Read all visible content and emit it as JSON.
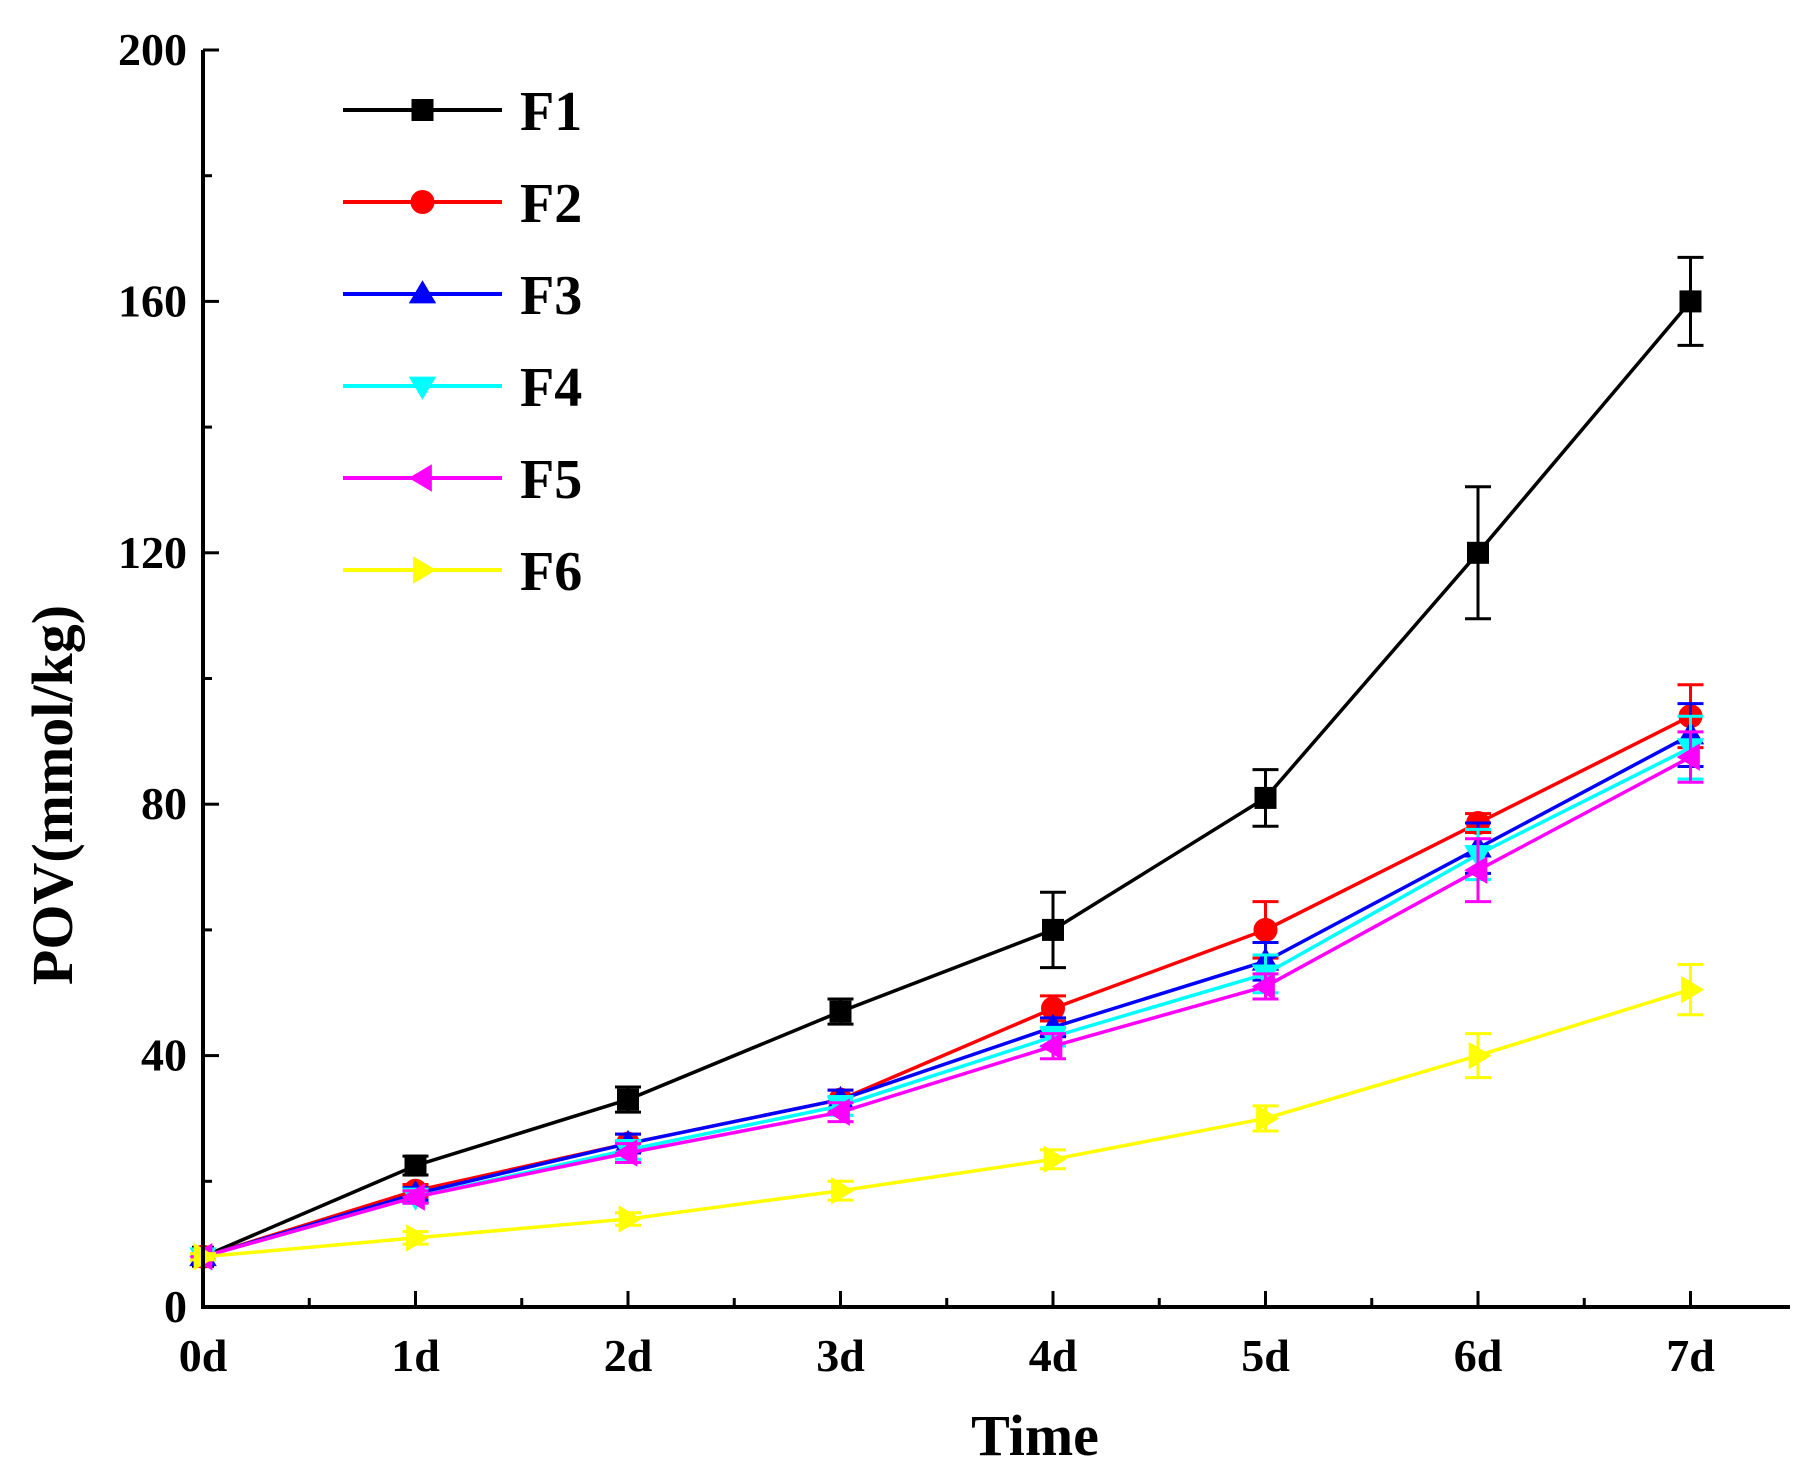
{
  "chart_data": {
    "type": "line",
    "title": "",
    "xlabel": "Time",
    "ylabel": "POV(mmol/kg)",
    "categories": [
      "0d",
      "1d",
      "2d",
      "3d",
      "4d",
      "5d",
      "6d",
      "7d"
    ],
    "ylim": [
      0,
      200
    ],
    "yticks": [
      0,
      40,
      80,
      120,
      160,
      200
    ],
    "yticklabels": [
      "0",
      "40",
      "80",
      "120",
      "160",
      "200"
    ],
    "grid": false,
    "legend": "top-left",
    "series": [
      {
        "name": "F1",
        "color": "#000000",
        "marker": "square",
        "values": [
          8,
          22.5,
          33,
          47,
          60,
          81,
          120,
          160
        ],
        "errors": [
          0.5,
          1.5,
          2,
          2,
          6,
          4.5,
          10.5,
          7
        ]
      },
      {
        "name": "F2",
        "color": "#ff0000",
        "marker": "circle",
        "values": [
          8,
          18.5,
          26,
          33,
          47.5,
          60,
          77,
          94
        ],
        "errors": [
          0.5,
          1,
          1.5,
          1.5,
          2,
          4.5,
          1.5,
          5
        ]
      },
      {
        "name": "F3",
        "color": "#0000ff",
        "marker": "triangle-up",
        "values": [
          8,
          18,
          26,
          33,
          44.5,
          55,
          73,
          91
        ],
        "errors": [
          0.5,
          1,
          1.5,
          1.5,
          1.5,
          3,
          4,
          5
        ]
      },
      {
        "name": "F4",
        "color": "#00ffff",
        "marker": "triangle-down",
        "values": [
          8,
          17.5,
          25,
          32,
          43,
          53,
          72,
          89
        ],
        "errors": [
          0.5,
          1,
          1.5,
          1.5,
          1.5,
          3,
          4,
          5
        ]
      },
      {
        "name": "F5",
        "color": "#ff00ff",
        "marker": "triangle-left",
        "values": [
          8,
          17.5,
          24.5,
          31,
          41.5,
          51,
          69.5,
          87.5
        ],
        "errors": [
          0.5,
          1,
          1.5,
          1.5,
          2,
          2,
          5,
          4
        ]
      },
      {
        "name": "F6",
        "color": "#ffff00",
        "marker": "triangle-right",
        "values": [
          8,
          11,
          14,
          18.5,
          23.5,
          30,
          40,
          50.5
        ],
        "errors": [
          0.5,
          1,
          1,
          1.5,
          1.5,
          2,
          3.5,
          4
        ]
      }
    ]
  }
}
